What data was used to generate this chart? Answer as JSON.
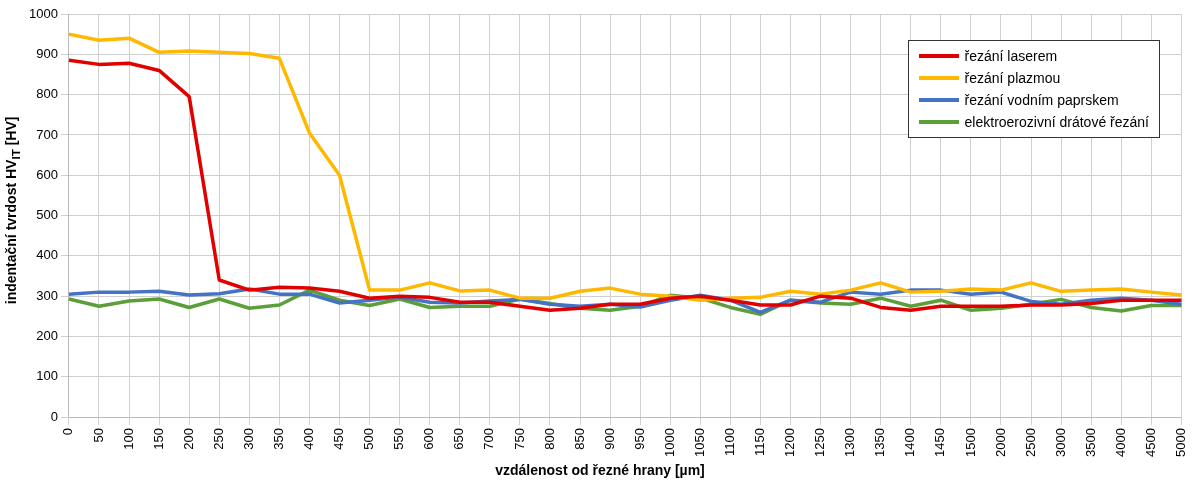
{
  "chart_data": {
    "type": "line",
    "xlabel": "vzdálenost od řezné hrany [µm]",
    "ylabel": "indentační tvrdost HV$_{IT}$ [HV]",
    "categories": [
      "0",
      "50",
      "100",
      "150",
      "200",
      "250",
      "300",
      "350",
      "400",
      "450",
      "500",
      "550",
      "600",
      "650",
      "700",
      "750",
      "800",
      "850",
      "900",
      "950",
      "1000",
      "1050",
      "1100",
      "1150",
      "1200",
      "1250",
      "1300",
      "1350",
      "1400",
      "1450",
      "1500",
      "2000",
      "2500",
      "3000",
      "3500",
      "4000",
      "4500",
      "5000"
    ],
    "ylim": [
      0,
      1000
    ],
    "yticks": [
      0,
      100,
      200,
      300,
      400,
      500,
      600,
      700,
      800,
      900,
      1000
    ],
    "grid": true,
    "legend": "top right",
    "marker": "none",
    "series": [
      {
        "name": "řezání laserem",
        "color": "#e00000",
        "values": [
          885,
          875,
          878,
          860,
          795,
          340,
          315,
          322,
          320,
          312,
          295,
          300,
          297,
          285,
          285,
          275,
          265,
          270,
          280,
          280,
          295,
          300,
          290,
          278,
          278,
          300,
          295,
          272,
          265,
          275,
          275,
          275,
          278,
          278,
          282,
          290,
          290,
          290
        ]
      },
      {
        "name": "řezání plazmou",
        "color": "#ffb800",
        "values": [
          950,
          935,
          940,
          905,
          908,
          905,
          902,
          890,
          705,
          600,
          315,
          315,
          333,
          313,
          315,
          295,
          295,
          312,
          320,
          305,
          300,
          290,
          295,
          297,
          312,
          305,
          315,
          333,
          310,
          312,
          318,
          315,
          333,
          312,
          315,
          318,
          310,
          303
        ]
      },
      {
        "name": "řezání vodním paprskem",
        "color": "#4472c4",
        "values": [
          305,
          310,
          310,
          312,
          303,
          306,
          318,
          305,
          305,
          283,
          290,
          298,
          285,
          283,
          288,
          292,
          280,
          275,
          280,
          273,
          290,
          302,
          290,
          260,
          290,
          285,
          310,
          305,
          315,
          315,
          305,
          310,
          287,
          280,
          290,
          295,
          290,
          280
        ]
      },
      {
        "name": "elektroerozivní drátové řezání",
        "color": "#5b9e3a",
        "values": [
          293,
          275,
          288,
          293,
          272,
          293,
          270,
          278,
          315,
          290,
          277,
          293,
          272,
          275,
          275,
          293,
          282,
          270,
          265,
          275,
          302,
          295,
          272,
          255,
          290,
          283,
          280,
          295,
          275,
          290,
          265,
          270,
          280,
          292,
          272,
          263,
          277,
          277
        ]
      }
    ]
  }
}
